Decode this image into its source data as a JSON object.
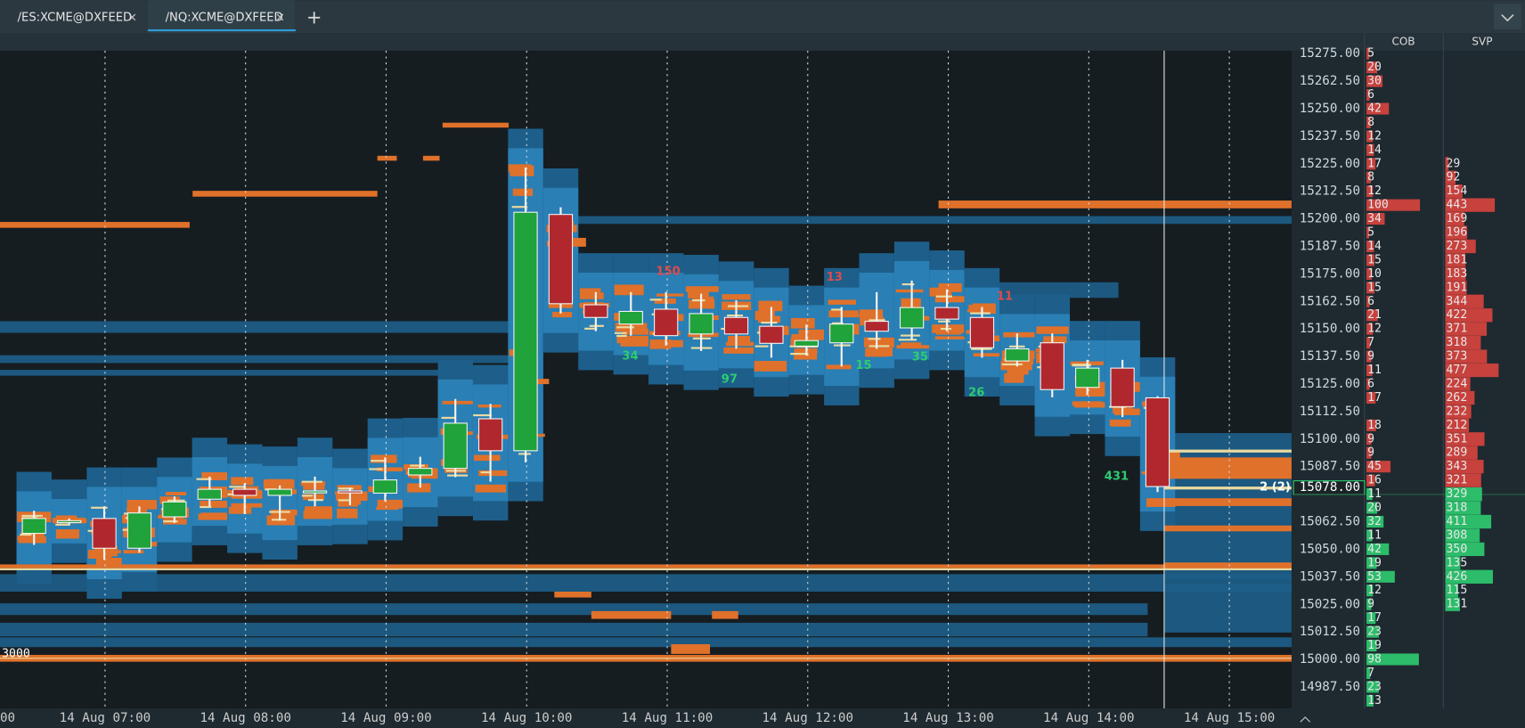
{
  "tabs": [
    "/ES:XCME@DXFEED",
    "/NQ:XCME@DXFEED"
  ],
  "active_tab": 1,
  "columns": [
    "COB",
    "SVP"
  ],
  "time_labels": [
    "00",
    "14 Aug 07:00",
    "14 Aug 08:00",
    "14 Aug 09:00",
    "14 Aug 10:00",
    "14 Aug 11:00",
    "14 Aug 12:00",
    "14 Aug 13:00",
    "14 Aug 14:00",
    "14 Aug 15:00"
  ],
  "price_labels": [
    {
      "value": 15275,
      "label": "15275.00"
    },
    {
      "value": 15262.5,
      "label": "15262.50"
    },
    {
      "value": 15250,
      "label": "15250.00"
    },
    {
      "value": 15237.5,
      "label": "15237.50"
    },
    {
      "value": 15225,
      "label": "15225.00"
    },
    {
      "value": 15212.5,
      "label": "15212.50"
    },
    {
      "value": 15200,
      "label": "15200.00"
    },
    {
      "value": 15187.5,
      "label": "15187.50"
    },
    {
      "value": 15175,
      "label": "15175.00"
    },
    {
      "value": 15162.5,
      "label": "15162.50"
    },
    {
      "value": 15150,
      "label": "15150.00"
    },
    {
      "value": 15137.5,
      "label": "15137.50"
    },
    {
      "value": 15125,
      "label": "15125.00"
    },
    {
      "value": 15112.5,
      "label": "15112.50"
    },
    {
      "value": 15100,
      "label": "15100.00"
    },
    {
      "value": 15087.5,
      "label": "15087.50"
    },
    {
      "value": 15078,
      "label": "15078.00"
    },
    {
      "value": 15062.5,
      "label": "15062.50"
    },
    {
      "value": 15050,
      "label": "15050.00"
    },
    {
      "value": 15037.5,
      "label": "15037.50"
    },
    {
      "value": 15025,
      "label": "15025.00"
    },
    {
      "value": 15012.5,
      "label": "15012.50"
    },
    {
      "value": 15000,
      "label": "15000.00"
    },
    {
      "value": 14987.5,
      "label": "14987.50"
    }
  ],
  "current_price_index": 16,
  "cob": [
    5,
    20,
    30,
    6,
    42,
    8,
    12,
    14,
    17,
    8,
    12,
    100,
    34,
    5,
    14,
    15,
    10,
    15,
    6,
    21,
    12,
    7,
    9,
    11,
    6,
    17,
    null,
    18,
    9,
    9,
    45,
    16,
    11,
    20,
    32,
    11,
    42,
    19,
    53,
    12,
    9,
    17,
    23,
    19,
    98,
    7,
    23,
    13
  ],
  "cob_ask_rows": 32,
  "svp": [
    null,
    null,
    null,
    null,
    null,
    null,
    null,
    null,
    29,
    92,
    154,
    443,
    169,
    196,
    273,
    181,
    183,
    191,
    344,
    422,
    371,
    318,
    373,
    477,
    224,
    262,
    232,
    212,
    351,
    289,
    343,
    321,
    329,
    318,
    411,
    308,
    350,
    135,
    426,
    115,
    131
  ],
  "candles": [
    [
      15057.25,
      15067.5,
      15052,
      15064
    ],
    [
      15062.75,
      15064,
      15061.5,
      15063
    ],
    [
      15064,
      15069.5,
      15045.25,
      15050.5
    ],
    [
      15050.5,
      15069.5,
      15048.5,
      15066.5
    ],
    [
      15064.75,
      15074,
      15062,
      15071.5
    ],
    [
      15072.75,
      15083,
      15069.5,
      15077.25
    ],
    [
      15077.25,
      15080,
      15066,
      15074.5
    ],
    [
      15074.5,
      15079,
      15063,
      15077.25
    ],
    [
      15076,
      15083,
      15069.5,
      15076.5
    ],
    [
      15076.5,
      15078,
      15070,
      15076
    ],
    [
      15075.5,
      15091.75,
      15071.75,
      15081.5
    ],
    [
      15083.75,
      15092,
      15078,
      15086.75
    ],
    [
      15086.75,
      15118.25,
      15082.75,
      15107.25
    ],
    [
      15109.25,
      15116,
      15080.75,
      15094.75
    ],
    [
      15094.75,
      15223.25,
      15089.5,
      15203
    ],
    [
      15202,
      15205.25,
      15157,
      15161.5
    ],
    [
      15161,
      15166.75,
      15149,
      15155.25
    ],
    [
      15152.25,
      15166.75,
      15147,
      15158
    ],
    [
      15159,
      15166.75,
      15142.5,
      15147
    ],
    [
      15147.75,
      15166,
      15140,
      15157
    ],
    [
      15155.25,
      15163,
      15141,
      15147.75
    ],
    [
      15151.25,
      15160,
      15137,
      15143.5
    ],
    [
      15142.25,
      15152,
      15138,
      15144.75
    ],
    [
      15143.75,
      15160,
      15133,
      15152.25
    ],
    [
      15153.5,
      15166.75,
      15141,
      15149
    ],
    [
      15150.5,
      15172,
      15145,
      15159.75
    ],
    [
      15159.75,
      15168,
      15149,
      15154.5
    ],
    [
      15155.25,
      15160,
      15137,
      15141.5
    ],
    [
      15135.5,
      15148,
      15133,
      15141
    ],
    [
      15143.75,
      15148,
      15119,
      15122.5
    ],
    [
      15123.5,
      15136,
      15120,
      15132.25
    ],
    [
      15132.25,
      15136,
      15110,
      15114.75
    ],
    [
      15118.75,
      15119.5,
      15076,
      15078.5
    ]
  ],
  "annotations": [
    {
      "text": "150",
      "color": "#e04b4b"
    },
    {
      "text": "13",
      "color": "#e04b4b"
    },
    {
      "text": "11",
      "color": "#e04b4b"
    },
    {
      "text": "34",
      "color": "#2ecc71"
    },
    {
      "text": "97",
      "color": "#2ecc71"
    },
    {
      "text": "15",
      "color": "#2ecc71"
    },
    {
      "text": "35",
      "color": "#2ecc71"
    },
    {
      "text": "26",
      "color": "#2ecc71"
    },
    {
      "text": "431",
      "color": "#2ecc71"
    }
  ],
  "left_label": "3000",
  "position_label": "2 (2)"
}
